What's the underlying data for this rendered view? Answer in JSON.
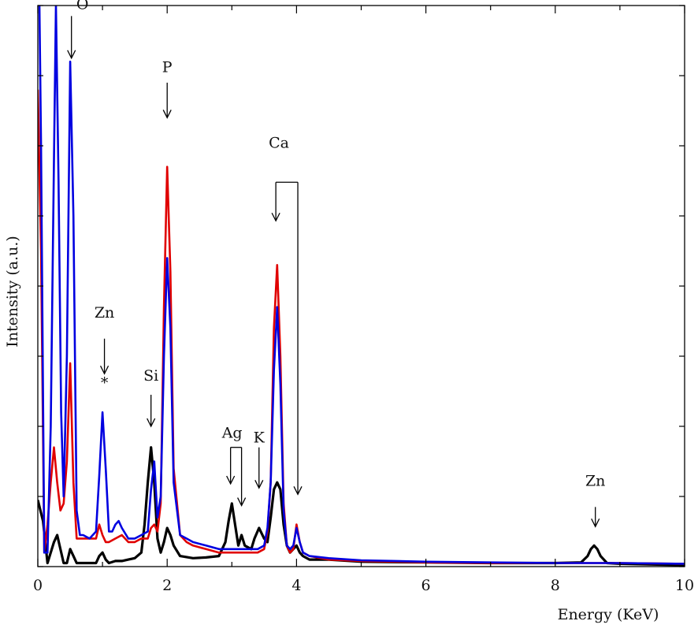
{
  "chart_data": {
    "type": "line",
    "xlabel": "Energy (KeV)",
    "ylabel": "Intensity (a.u.)",
    "xlim": [
      0,
      10
    ],
    "ylim": [
      0,
      80
    ],
    "x_ticks": [
      "0",
      "2",
      "4",
      "6",
      "8",
      "10"
    ],
    "grid": false,
    "legend": "none",
    "series": [
      {
        "color": "#000000",
        "x": [
          0,
          0.08,
          0.15,
          0.2,
          0.25,
          0.3,
          0.35,
          0.4,
          0.45,
          0.5,
          0.55,
          0.6,
          0.7,
          0.8,
          0.9,
          0.95,
          1.0,
          1.05,
          1.1,
          1.2,
          1.3,
          1.4,
          1.5,
          1.6,
          1.65,
          1.7,
          1.75,
          1.8,
          1.85,
          1.9,
          1.95,
          2.0,
          2.05,
          2.1,
          2.2,
          2.4,
          2.6,
          2.8,
          2.9,
          2.95,
          3.0,
          3.05,
          3.1,
          3.15,
          3.2,
          3.3,
          3.35,
          3.42,
          3.5,
          3.55,
          3.6,
          3.65,
          3.7,
          3.75,
          3.8,
          3.85,
          3.9,
          3.95,
          4.0,
          4.05,
          4.1,
          4.2,
          4.5,
          5.0,
          6.0,
          7.0,
          8.0,
          8.4,
          8.5,
          8.55,
          8.6,
          8.65,
          8.7,
          8.8,
          9.0,
          9.5,
          10.0
        ],
        "y": [
          9.5,
          6.5,
          0.5,
          2.0,
          3.5,
          4.5,
          2.5,
          0.5,
          0.5,
          2.5,
          1.5,
          0.5,
          0.5,
          0.5,
          0.5,
          1.5,
          2.0,
          1.0,
          0.5,
          0.8,
          0.8,
          1.0,
          1.2,
          2.0,
          6.0,
          12.0,
          17.0,
          12.0,
          4.0,
          2.0,
          3.5,
          5.5,
          4.5,
          3.0,
          1.5,
          1.2,
          1.3,
          1.5,
          3.5,
          6.5,
          9.0,
          6.0,
          3.0,
          4.5,
          3.0,
          2.5,
          4.0,
          5.5,
          4.0,
          3.5,
          7.0,
          11.0,
          12.0,
          11.0,
          6.0,
          3.0,
          2.0,
          2.5,
          3.0,
          2.0,
          1.5,
          1.0,
          1.0,
          0.7,
          0.6,
          0.5,
          0.5,
          0.6,
          1.5,
          2.5,
          3.0,
          2.5,
          1.5,
          0.5,
          0.4,
          0.3,
          0.2
        ]
      },
      {
        "color": "#e00000",
        "x": [
          0,
          0.05,
          0.1,
          0.15,
          0.2,
          0.25,
          0.3,
          0.35,
          0.4,
          0.45,
          0.5,
          0.55,
          0.6,
          0.7,
          0.8,
          0.9,
          0.95,
          1.0,
          1.05,
          1.1,
          1.2,
          1.3,
          1.4,
          1.5,
          1.6,
          1.7,
          1.75,
          1.8,
          1.85,
          1.9,
          1.95,
          2.0,
          2.05,
          2.1,
          2.2,
          2.3,
          2.4,
          2.6,
          2.8,
          3.0,
          3.2,
          3.4,
          3.5,
          3.55,
          3.6,
          3.65,
          3.7,
          3.75,
          3.8,
          3.85,
          3.9,
          3.95,
          4.0,
          4.05,
          4.1,
          4.2,
          4.5,
          5.0,
          6.0,
          7.0,
          8.0,
          9.0,
          10.0
        ],
        "y": [
          68.0,
          45.0,
          2.0,
          6.0,
          12.0,
          17.0,
          12.0,
          8.0,
          9.0,
          15.0,
          29.0,
          12.0,
          4.0,
          4.0,
          4.0,
          4.0,
          6.0,
          4.5,
          3.5,
          3.5,
          4.0,
          4.5,
          3.5,
          3.5,
          4.0,
          4.0,
          5.5,
          6.0,
          5.0,
          9.0,
          37.0,
          57.0,
          42.0,
          14.0,
          4.5,
          3.5,
          3.0,
          2.5,
          2.0,
          2.0,
          2.0,
          2.0,
          2.5,
          5.0,
          12.0,
          34.0,
          43.0,
          30.0,
          9.0,
          3.0,
          2.0,
          2.5,
          6.0,
          3.5,
          2.0,
          1.5,
          1.0,
          0.8,
          0.6,
          0.5,
          0.5,
          0.5,
          0.4
        ]
      },
      {
        "color": "#0000e0",
        "x": [
          0,
          0.05,
          0.1,
          0.15,
          0.2,
          0.25,
          0.28,
          0.32,
          0.36,
          0.4,
          0.45,
          0.5,
          0.55,
          0.6,
          0.65,
          0.7,
          0.8,
          0.9,
          0.95,
          1.0,
          1.05,
          1.1,
          1.15,
          1.2,
          1.25,
          1.3,
          1.4,
          1.5,
          1.6,
          1.7,
          1.75,
          1.8,
          1.85,
          1.9,
          1.95,
          2.0,
          2.05,
          2.1,
          2.2,
          2.3,
          2.4,
          2.6,
          2.8,
          3.0,
          3.2,
          3.4,
          3.5,
          3.55,
          3.6,
          3.65,
          3.7,
          3.75,
          3.8,
          3.85,
          3.9,
          3.95,
          4.0,
          4.05,
          4.1,
          4.2,
          4.5,
          5.0,
          6.0,
          7.0,
          8.0,
          9.0,
          10.0
        ],
        "y": [
          100.0,
          60.0,
          2.0,
          2.0,
          20.0,
          58.0,
          80.0,
          55.0,
          22.0,
          10.0,
          30.0,
          72.0,
          50.0,
          8.0,
          4.5,
          4.5,
          4.0,
          5.0,
          13.0,
          22.0,
          14.0,
          5.0,
          5.0,
          6.0,
          6.5,
          5.5,
          4.0,
          4.0,
          4.5,
          5.0,
          11.0,
          15.0,
          7.0,
          10.0,
          30.0,
          44.0,
          34.0,
          12.0,
          4.5,
          4.0,
          3.5,
          3.0,
          2.5,
          2.5,
          2.5,
          2.5,
          3.0,
          5.5,
          12.0,
          28.0,
          37.0,
          26.0,
          8.0,
          3.0,
          2.5,
          3.0,
          5.5,
          3.5,
          2.0,
          1.5,
          1.2,
          0.9,
          0.7,
          0.6,
          0.5,
          0.5,
          0.4
        ]
      }
    ],
    "annotations": [
      {
        "label": "O",
        "x": 0.52,
        "arrow_top_y": 78.5,
        "arrow_tip_y": 72.5,
        "label_y": 79.5
      },
      {
        "label": "P",
        "x": 2.0,
        "arrow_top_y": 69.0,
        "arrow_tip_y": 64.0,
        "label_y": 70.5
      },
      {
        "label": "Zn",
        "x": 1.03,
        "arrow_top_y": 32.5,
        "arrow_tip_y": 27.5,
        "label_y": 35.5,
        "marker": "*",
        "marker_y": 25.5
      },
      {
        "label": "Si",
        "x": 1.75,
        "arrow_top_y": 24.5,
        "arrow_tip_y": 20.0,
        "label_y": 26.5
      },
      {
        "label": "K",
        "x": 3.42,
        "arrow_top_y": 17.0,
        "arrow_tip_y": 11.2,
        "label_y": 17.7
      },
      {
        "label": "Zn",
        "x": 8.62,
        "arrow_top_y": 8.5,
        "arrow_tip_y": 5.7,
        "label_y": 11.5
      }
    ],
    "bracket_annotations": [
      {
        "label": "Ag",
        "x1": 2.98,
        "x2": 3.15,
        "top_y": 17.0,
        "tip1_y": 11.8,
        "tip2_y": 8.7,
        "label_y": 17.7
      },
      {
        "label": "Ca",
        "x1": 3.68,
        "x2": 4.02,
        "top_y": 54.8,
        "tip1_y": 49.3,
        "tip2_y": 10.3,
        "label_y": 57.5
      }
    ]
  }
}
